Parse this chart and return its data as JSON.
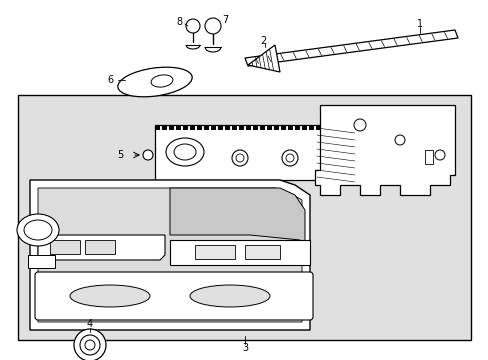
{
  "bg_color": "#ffffff",
  "box_fill": "#e0e0e0",
  "line_color": "#000000",
  "fig_width": 4.89,
  "fig_height": 3.6,
  "dpi": 100
}
